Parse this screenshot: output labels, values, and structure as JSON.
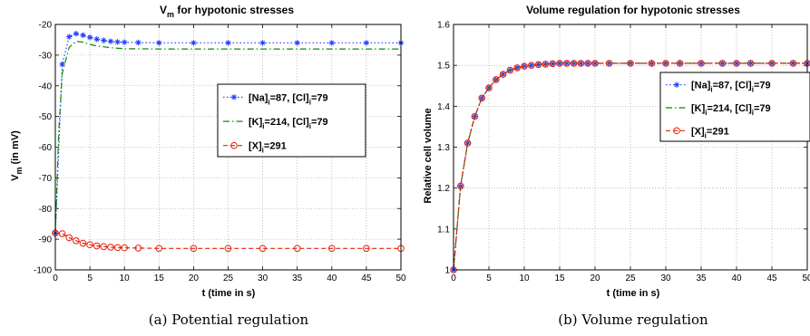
{
  "chart_data": [
    {
      "type": "line",
      "title": {
        "main": "V",
        "sub": "m",
        "rest": " for hypotonic stresses"
      },
      "ylabel": {
        "main": "V",
        "sub": "m",
        "rest": " (in mV)"
      },
      "xlabel": "t (time in s)",
      "xlim": [
        0,
        50
      ],
      "ylim": [
        -100,
        -20
      ],
      "xticks": [
        "0",
        "5",
        "10",
        "15",
        "20",
        "25",
        "30",
        "35",
        "40",
        "45",
        "50"
      ],
      "yticks": [
        "-20",
        "-30",
        "-40",
        "-50",
        "-60",
        "-70",
        "-80",
        "-90",
        "-100"
      ],
      "grid": true,
      "legend_position": "right",
      "caption": "(a) Potential regulation",
      "series": [
        {
          "legend": [
            {
              "t": "[Na]"
            },
            {
              "t": "i",
              "s": true
            },
            {
              "t": "=87, [Cl]"
            },
            {
              "t": "i",
              "s": true
            },
            {
              "t": "=79"
            }
          ],
          "color": "#1f3fff",
          "style": "dotted",
          "marker": "star",
          "x": [
            0,
            1,
            2,
            3,
            4,
            5,
            6,
            7,
            8,
            9,
            10,
            12,
            15,
            20,
            25,
            30,
            35,
            40,
            45,
            50
          ],
          "y": [
            -88,
            -33,
            -24,
            -23,
            -23.5,
            -24.2,
            -24.8,
            -25.2,
            -25.5,
            -25.7,
            -25.8,
            -25.9,
            -26,
            -26,
            -26,
            -26,
            -26,
            -26,
            -26,
            -26
          ]
        },
        {
          "legend": [
            {
              "t": "[K]"
            },
            {
              "t": "i",
              "s": true
            },
            {
              "t": "=214, [Cl]"
            },
            {
              "t": "i",
              "s": true
            },
            {
              "t": "=79"
            }
          ],
          "color": "#0a8a0a",
          "style": "dashdot",
          "marker": "none",
          "x": [
            0,
            0.5,
            1,
            2,
            3,
            4,
            5,
            6,
            8,
            10,
            15,
            20,
            30,
            40,
            50
          ],
          "y": [
            -88,
            -55,
            -36,
            -27.5,
            -25.5,
            -25.8,
            -26.5,
            -27,
            -27.6,
            -27.9,
            -28,
            -28,
            -28,
            -28,
            -28
          ]
        },
        {
          "legend": [
            {
              "t": "[X]"
            },
            {
              "t": "i",
              "s": true
            },
            {
              "t": "=291"
            }
          ],
          "color": "#e8200a",
          "style": "dashed",
          "marker": "circle",
          "x": [
            0,
            1,
            2,
            3,
            4,
            5,
            6,
            7,
            8,
            9,
            10,
            12,
            15,
            20,
            25,
            30,
            35,
            40,
            45,
            50
          ],
          "y": [
            -88,
            -88.2,
            -89.5,
            -90.5,
            -91.3,
            -91.8,
            -92.2,
            -92.4,
            -92.6,
            -92.7,
            -92.8,
            -92.9,
            -93,
            -93,
            -93,
            -93,
            -93,
            -93,
            -93,
            -93
          ]
        }
      ]
    },
    {
      "type": "line",
      "title": {
        "main": "Volume regulation for hypotonic stresses",
        "sub": "",
        "rest": ""
      },
      "ylabel": {
        "main": "Relative cell volume",
        "sub": "",
        "rest": ""
      },
      "xlabel": "t (time in s)",
      "xlim": [
        0,
        50
      ],
      "ylim": [
        1,
        1.6
      ],
      "xticks": [
        "0",
        "5",
        "10",
        "15",
        "20",
        "25",
        "30",
        "35",
        "40",
        "45",
        "50"
      ],
      "yticks": [
        "1",
        "1.1",
        "1.2",
        "1.3",
        "1.4",
        "1.5",
        "1.6"
      ],
      "grid": true,
      "legend_position": "top-right",
      "caption": "(b) Volume regulation",
      "series": [
        {
          "legend": [
            {
              "t": "[Na]"
            },
            {
              "t": "i",
              "s": true
            },
            {
              "t": "=87, [Cl]"
            },
            {
              "t": "i",
              "s": true
            },
            {
              "t": "=79"
            }
          ],
          "color": "#1f3fff",
          "style": "dotted",
          "marker": "star",
          "x": [
            0,
            1,
            2,
            3,
            4,
            5,
            6,
            7,
            8,
            9,
            10,
            11,
            12,
            13,
            14,
            15,
            16,
            17,
            18,
            19,
            20,
            22,
            25,
            28,
            30,
            32,
            35,
            38,
            40,
            42,
            45,
            48,
            50
          ],
          "y": [
            1.0,
            1.205,
            1.31,
            1.375,
            1.42,
            1.445,
            1.465,
            1.478,
            1.488,
            1.494,
            1.498,
            1.5,
            1.502,
            1.503,
            1.504,
            1.505,
            1.505,
            1.505,
            1.505,
            1.505,
            1.505,
            1.505,
            1.505,
            1.505,
            1.505,
            1.505,
            1.505,
            1.505,
            1.505,
            1.505,
            1.505,
            1.505,
            1.505
          ]
        },
        {
          "legend": [
            {
              "t": "[K]"
            },
            {
              "t": "i",
              "s": true
            },
            {
              "t": "=214, [Cl]"
            },
            {
              "t": "i",
              "s": true
            },
            {
              "t": "=79"
            }
          ],
          "color": "#0a8a0a",
          "style": "dashdot",
          "marker": "none",
          "x": [
            0,
            1,
            2,
            3,
            4,
            5,
            6,
            7,
            8,
            9,
            10,
            12,
            15,
            20,
            30,
            40,
            50
          ],
          "y": [
            1.0,
            1.205,
            1.31,
            1.375,
            1.42,
            1.445,
            1.465,
            1.478,
            1.488,
            1.494,
            1.498,
            1.502,
            1.505,
            1.505,
            1.505,
            1.505,
            1.505
          ]
        },
        {
          "legend": [
            {
              "t": "[X]"
            },
            {
              "t": "i",
              "s": true
            },
            {
              "t": "=291"
            }
          ],
          "color": "#e8200a",
          "style": "dashed",
          "marker": "circle",
          "x": [
            0,
            1,
            2,
            3,
            4,
            5,
            6,
            7,
            8,
            9,
            10,
            11,
            12,
            13,
            14,
            15,
            16,
            17,
            18,
            19,
            20,
            22,
            25,
            28,
            30,
            32,
            35,
            38,
            40,
            42,
            45,
            48,
            50
          ],
          "y": [
            1.0,
            1.205,
            1.31,
            1.375,
            1.42,
            1.445,
            1.465,
            1.478,
            1.488,
            1.494,
            1.498,
            1.5,
            1.502,
            1.503,
            1.504,
            1.505,
            1.505,
            1.505,
            1.505,
            1.505,
            1.505,
            1.505,
            1.505,
            1.505,
            1.505,
            1.505,
            1.505,
            1.505,
            1.505,
            1.505,
            1.505,
            1.505,
            1.505
          ]
        }
      ]
    }
  ]
}
